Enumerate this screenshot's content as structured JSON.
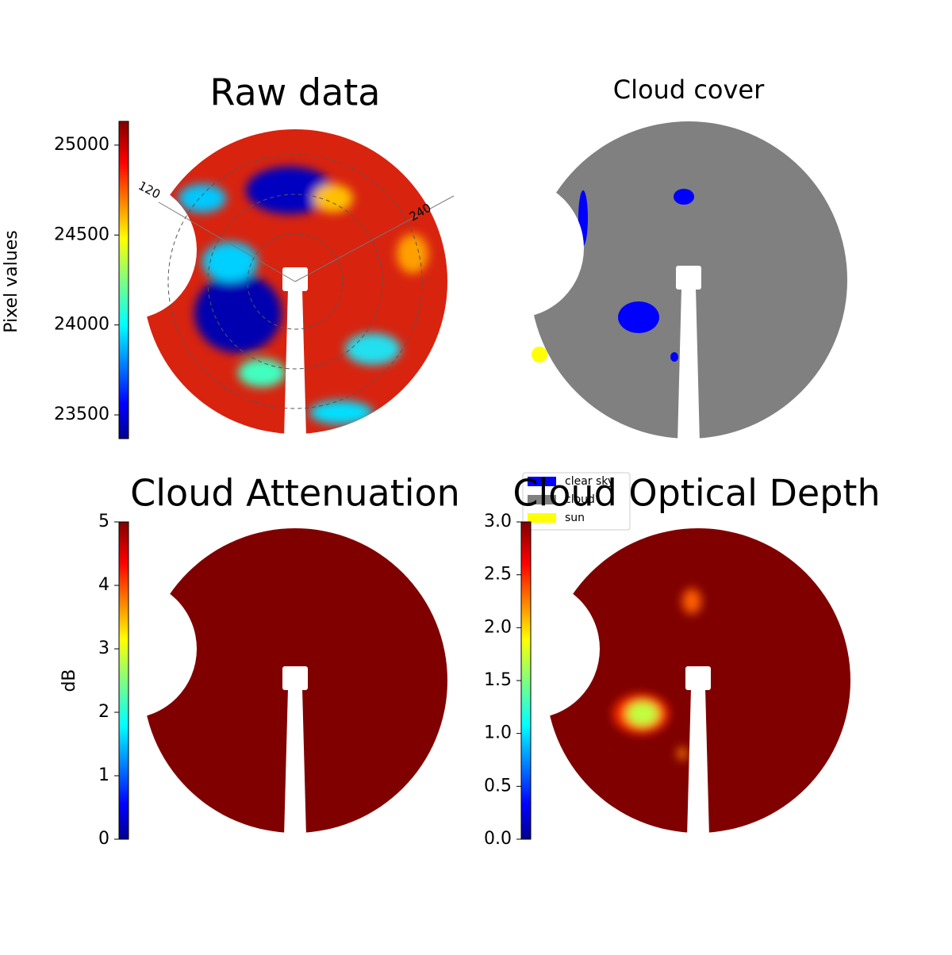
{
  "chart_data": [
    {
      "type": "image",
      "title": "Raw data",
      "ylabel": "Pixel values",
      "ylim": [
        23368,
        25132
      ],
      "yticks": [
        23500,
        24000,
        24500,
        25000
      ],
      "annotations": [
        "120",
        "240"
      ]
    },
    {
      "type": "image",
      "title": "Cloud cover",
      "legend": {
        "labels": [
          "clear sky",
          "cloud",
          "sun"
        ],
        "colors": [
          "#0000ff",
          "#808080",
          "#ffff00"
        ]
      }
    },
    {
      "type": "image",
      "title": "Cloud Attenuation",
      "ylabel": "dB",
      "ylim": [
        0,
        5
      ],
      "yticks": [
        0,
        1,
        2,
        3,
        4,
        5
      ]
    },
    {
      "type": "image",
      "title": "Cloud Optical Depth",
      "ylim": [
        0,
        3
      ],
      "yticks": [
        {
          "value": 0,
          "label": "0.0"
        },
        0.5,
        {
          "value": 1,
          "label": "1.0"
        },
        1.5,
        {
          "value": 2,
          "label": "2.0"
        },
        2.5,
        {
          "value": 3,
          "label": "3.0"
        }
      ]
    }
  ]
}
